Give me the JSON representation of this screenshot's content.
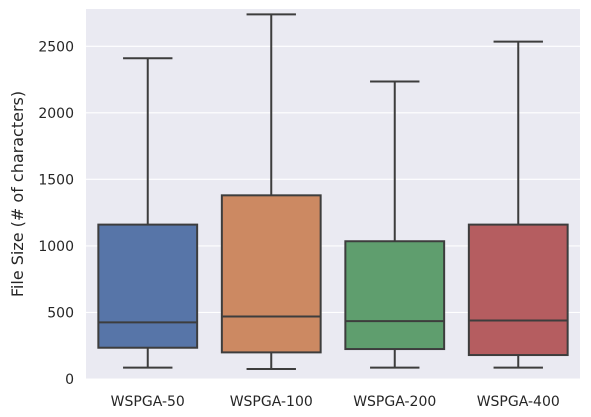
{
  "chart_data": {
    "type": "box",
    "title": "",
    "xlabel": "",
    "ylabel": "File Size (# of characters)",
    "ylim": [
      0,
      2780
    ],
    "yticks": [
      0,
      500,
      1000,
      1500,
      2000,
      2500
    ],
    "grid": true,
    "legend": "none",
    "categories": [
      "WSPGA-50",
      "WSPGA-100",
      "WSPGA-200",
      "WSPGA-400"
    ],
    "boxes": [
      {
        "category": "WSPGA-50",
        "whisker_low": 85,
        "q1": 235,
        "median": 425,
        "q3": 1160,
        "whisker_high": 2410,
        "color": "#5775a8"
      },
      {
        "category": "WSPGA-100",
        "whisker_low": 75,
        "q1": 200,
        "median": 470,
        "q3": 1380,
        "whisker_high": 2740,
        "color": "#cc8962"
      },
      {
        "category": "WSPGA-200",
        "whisker_low": 85,
        "q1": 225,
        "median": 435,
        "q3": 1035,
        "whisker_high": 2235,
        "color": "#5f9e6e"
      },
      {
        "category": "WSPGA-400",
        "whisker_low": 85,
        "q1": 180,
        "median": 440,
        "q3": 1160,
        "whisker_high": 2535,
        "color": "#b55d60"
      }
    ],
    "style": {
      "background": "#eaeaf2",
      "gridline": "#ffffff",
      "line": "#3d3d3d"
    }
  }
}
